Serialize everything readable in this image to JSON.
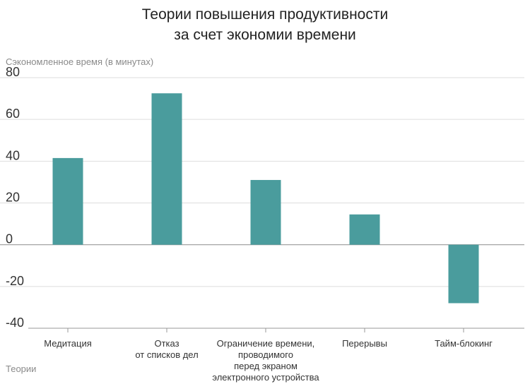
{
  "title_lines": [
    "Теории повышения продуктивности",
    "за счет экономии времени"
  ],
  "colors": {
    "bar": "#4a9c9d",
    "grid": "#dddddd",
    "zero_line": "#999999",
    "tick_text": "#333333",
    "label_text": "#8a8a8a"
  },
  "chart_data": {
    "type": "bar",
    "title": "Теории повышения продуктивности за счет экономии времени",
    "ylabel": "Сэкономленное время (в минутах)",
    "xlabel": "Теории",
    "ylim": [
      -40,
      80
    ],
    "yticks": [
      80,
      60,
      40,
      20,
      0,
      -20,
      -40
    ],
    "ytick_labels": [
      "80",
      "60",
      "40",
      "20",
      "0",
      "-20",
      "-40"
    ],
    "grid": true,
    "categories": [
      [
        "Медитация"
      ],
      [
        "Отказ",
        "от списков дел"
      ],
      [
        "Ограничение времени,",
        "проводимого",
        "перед экраном",
        "электронного устройства"
      ],
      [
        "Перерывы"
      ],
      [
        "Тайм-блокинг"
      ]
    ],
    "values": [
      41.5,
      72.5,
      31,
      14.5,
      -28
    ]
  }
}
